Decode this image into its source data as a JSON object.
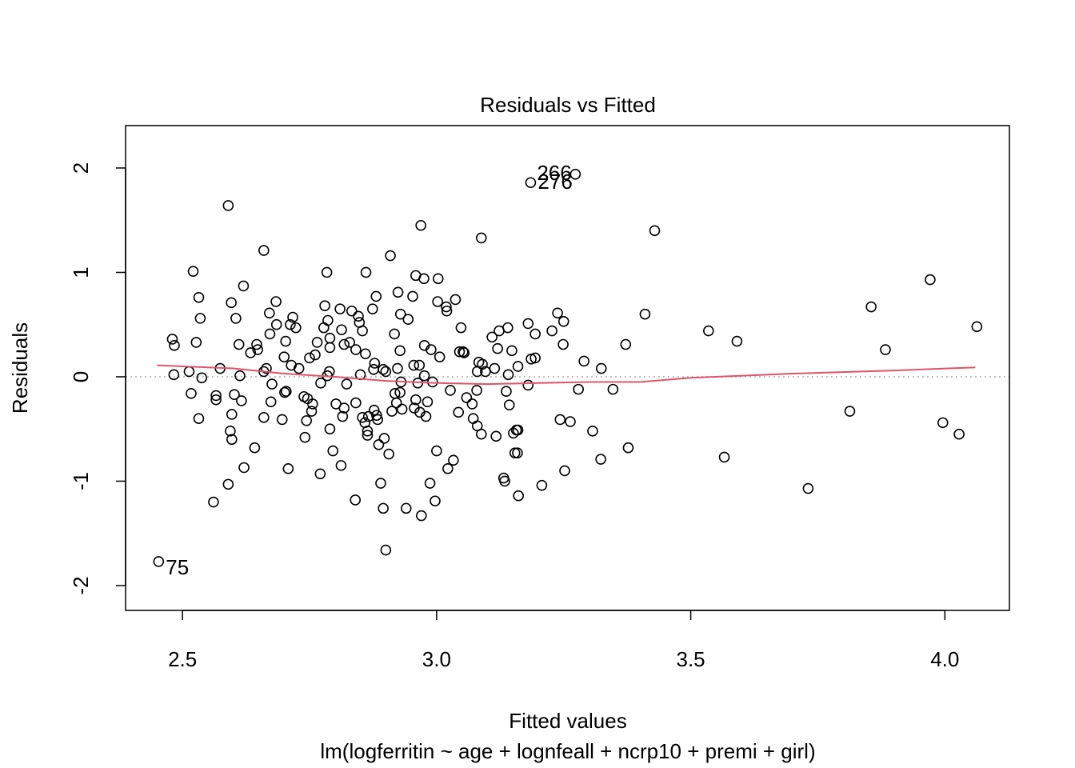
{
  "chart_data": {
    "type": "scatter",
    "title": "Residuals vs Fitted",
    "xlabel": "Fitted values",
    "ylabel": "Residuals",
    "subtitle": "lm(logferritin ~ age + lognfeall + ncrp10 + premi + girl)",
    "xlim": [
      2.388,
      4.127
    ],
    "ylim": [
      -2.238,
      2.406
    ],
    "xticks": [
      2.5,
      {
        "value": 3,
        "label": "3.0"
      },
      3.5,
      {
        "value": 4,
        "label": "4.0"
      }
    ],
    "yticks": [
      -2,
      -1,
      0,
      1,
      2
    ],
    "color": "#000000",
    "reference_line": {
      "y": 0,
      "color": "#aaaaaa"
    },
    "smooth": {
      "color": "#DF536B",
      "x": [
        2.45,
        2.6,
        2.7,
        2.8,
        2.9,
        3.0,
        3.1,
        3.2,
        3.3,
        3.4,
        3.5,
        3.7,
        3.9,
        4.06
      ],
      "y": [
        0.11,
        0.08,
        0.03,
        0.0,
        -0.04,
        -0.06,
        -0.07,
        -0.06,
        -0.05,
        -0.05,
        -0.01,
        0.03,
        0.06,
        0.09
      ]
    },
    "annotations": [
      {
        "text": "266",
        "x": 3.273,
        "y": 1.94
      },
      {
        "text": "276",
        "x": 3.185,
        "y": 1.86
      },
      {
        "text": "75",
        "x": 2.453,
        "y": -1.77
      }
    ],
    "x": [
      2.453,
      2.48,
      2.484,
      2.483,
      2.513,
      2.517,
      2.521,
      2.527,
      2.532,
      2.535,
      2.538,
      2.532,
      2.561,
      2.566,
      2.566,
      2.574,
      2.59,
      2.59,
      2.594,
      2.596,
      2.597,
      2.597,
      2.602,
      2.605,
      2.611,
      2.613,
      2.616,
      2.62,
      2.621,
      2.634,
      2.642,
      2.646,
      2.648,
      2.66,
      2.66,
      2.66,
      2.665,
      2.671,
      2.672,
      2.676,
      2.674,
      2.684,
      2.685,
      2.696,
      2.7,
      2.701,
      2.703,
      2.704,
      2.708,
      2.712,
      2.714,
      2.717,
      2.723,
      2.729,
      2.739,
      2.741,
      2.744,
      2.746,
      2.75,
      2.754,
      2.756,
      2.761,
      2.765,
      2.771,
      2.772,
      2.778,
      2.78,
      2.784,
      2.785,
      2.786,
      2.79,
      2.79,
      2.789,
      2.79,
      2.796,
      2.802,
      2.81,
      2.812,
      2.813,
      2.815,
      2.818,
      2.818,
      2.823,
      2.829,
      2.833,
      2.84,
      2.841,
      2.841,
      2.846,
      2.848,
      2.85,
      2.854,
      2.854,
      2.859,
      2.86,
      2.861,
      2.864,
      2.864,
      2.866,
      2.874,
      2.877,
      2.876,
      2.878,
      2.881,
      2.882,
      2.884,
      2.886,
      2.89,
      2.895,
      2.895,
      2.897,
      2.9,
      2.9,
      2.906,
      2.909,
      2.912,
      2.917,
      2.918,
      2.921,
      2.923,
      2.924,
      2.928,
      2.928,
      2.929,
      2.93,
      2.932,
      2.94,
      2.944,
      2.953,
      2.955,
      2.956,
      2.959,
      2.959,
      2.963,
      2.966,
      2.967,
      2.969,
      2.97,
      2.975,
      2.976,
      2.976,
      2.979,
      2.982,
      2.987,
      2.989,
      2.992,
      2.997,
      3.0,
      3.002,
      3.003,
      3.006,
      3.019,
      3.02,
      3.022,
      3.027,
      3.033,
      3.037,
      3.043,
      3.048,
      3.045,
      3.052,
      3.054,
      3.059,
      3.07,
      3.072,
      3.079,
      3.08,
      3.08,
      3.083,
      3.088,
      3.088,
      3.09,
      3.096,
      3.109,
      3.114,
      3.117,
      3.12,
      3.123,
      3.132,
      3.134,
      3.137,
      3.14,
      3.141,
      3.143,
      3.148,
      3.151,
      3.154,
      3.157,
      3.159,
      3.16,
      3.161,
      3.16,
      3.18,
      3.18,
      3.185,
      3.186,
      3.194,
      3.194,
      3.207,
      3.227,
      3.238,
      3.243,
      3.249,
      3.25,
      3.252,
      3.263,
      3.273,
      3.279,
      3.29,
      3.307,
      3.323,
      3.324,
      3.347,
      3.372,
      3.377,
      3.41,
      3.429,
      3.535,
      3.566,
      3.591,
      3.731,
      3.813,
      3.855,
      3.883,
      3.971,
      3.996,
      4.028,
      4.063
    ],
    "y": [
      -1.77,
      0.36,
      0.3,
      0.02,
      0.05,
      -0.16,
      1.01,
      0.33,
      0.76,
      0.56,
      -0.01,
      -0.4,
      -1.2,
      -0.18,
      -0.22,
      0.08,
      1.64,
      -1.03,
      -0.52,
      0.71,
      -0.36,
      -0.6,
      -0.17,
      0.56,
      0.31,
      0.01,
      -0.23,
      0.87,
      -0.87,
      0.23,
      -0.68,
      0.31,
      0.26,
      1.21,
      -0.39,
      0.05,
      0.08,
      0.61,
      0.41,
      -0.07,
      -0.24,
      0.72,
      0.5,
      -0.41,
      0.19,
      -0.15,
      0.34,
      -0.14,
      -0.88,
      0.5,
      0.11,
      0.57,
      0.47,
      0.08,
      -0.19,
      -0.58,
      -0.42,
      -0.21,
      0.18,
      -0.33,
      -0.26,
      0.21,
      0.33,
      -0.93,
      -0.06,
      0.47,
      0.68,
      1.0,
      0.01,
      0.54,
      0.37,
      0.28,
      0.05,
      -0.5,
      -0.71,
      -0.26,
      0.65,
      -0.85,
      0.45,
      -0.38,
      0.31,
      -0.3,
      -0.07,
      0.33,
      0.63,
      -1.18,
      0.26,
      -0.25,
      0.58,
      0.52,
      0.02,
      0.44,
      -0.39,
      -0.44,
      0.22,
      1.0,
      -0.52,
      -0.56,
      -0.38,
      0.65,
      -0.32,
      0.07,
      0.13,
      0.77,
      -0.37,
      -0.41,
      -0.65,
      -1.02,
      -1.26,
      0.07,
      -0.59,
      0.05,
      -1.66,
      -0.74,
      1.16,
      -0.33,
      0.41,
      -0.16,
      -0.25,
      0.08,
      0.81,
      -0.15,
      0.25,
      0.6,
      -0.05,
      -0.31,
      -1.26,
      0.55,
      0.77,
      0.11,
      -0.3,
      0.97,
      -0.22,
      -0.06,
      0.11,
      -0.34,
      1.45,
      -1.33,
      0.94,
      0.3,
      0.01,
      -0.38,
      -0.24,
      -1.02,
      0.26,
      -0.05,
      -1.19,
      -0.71,
      0.72,
      0.94,
      0.19,
      0.67,
      0.63,
      -0.88,
      -0.13,
      -0.8,
      0.74,
      -0.34,
      0.47,
      0.24,
      0.24,
      0.23,
      -0.2,
      -0.26,
      -0.4,
      -0.13,
      0.05,
      -0.47,
      0.14,
      1.33,
      -0.55,
      0.12,
      0.05,
      0.38,
      0.08,
      -0.57,
      0.27,
      0.44,
      -0.97,
      -1.0,
      -0.14,
      0.47,
      0.02,
      -0.27,
      0.25,
      -0.54,
      -0.73,
      -0.51,
      -0.73,
      -0.51,
      -1.14,
      0.1,
      0.51,
      -0.08,
      1.86,
      0.17,
      0.18,
      0.41,
      -1.04,
      0.44,
      0.61,
      -0.41,
      0.31,
      0.53,
      -0.9,
      -0.43,
      1.94,
      -0.12,
      0.15,
      -0.52,
      -0.79,
      0.08,
      -0.12,
      0.31,
      -0.68,
      0.6,
      1.4,
      0.44,
      -0.77,
      0.34,
      -1.07,
      -0.33,
      0.67,
      0.26,
      0.93,
      -0.44,
      -0.55,
      0.48
    ]
  }
}
